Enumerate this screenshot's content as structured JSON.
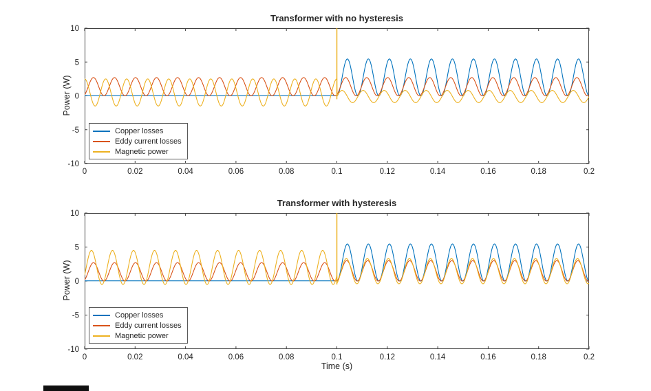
{
  "chart_data": [
    {
      "type": "line",
      "title": "Transformer with no hysteresis",
      "xlabel": "",
      "ylabel": "Power (W)",
      "xlim": [
        0,
        0.2
      ],
      "ylim": [
        -10,
        10
      ],
      "xticks": [
        0,
        0.02,
        0.04,
        0.06,
        0.08,
        0.1,
        0.12,
        0.14,
        0.16,
        0.18,
        0.2
      ],
      "xtick_labels": [
        "0",
        "0.02",
        "0.04",
        "0.06",
        "0.08",
        "0.1",
        "0.12",
        "0.14",
        "0.16",
        "0.18",
        "0.2"
      ],
      "yticks": [
        -10,
        -5,
        0,
        5,
        10
      ],
      "ytick_labels": [
        "-10",
        "-5",
        "0",
        "5",
        "10"
      ],
      "grid": false,
      "legend_position": "southwest",
      "legend": [
        "Copper losses",
        "Eddy current losses",
        "Magnetic power"
      ],
      "colors": [
        "#0072BD",
        "#D95319",
        "#EDB120"
      ],
      "switch_time": 0.1,
      "series": [
        {
          "name": "Copper losses",
          "color": "#0072BD",
          "segments": [
            {
              "t0": 0,
              "t1": 0.1,
              "type": "const",
              "value": 0.03
            },
            {
              "t0": 0.1,
              "t1": 0.2,
              "type": "sin2",
              "amp": 5.45,
              "offset": 0,
              "freq": 60,
              "phase": 0
            }
          ]
        },
        {
          "name": "Eddy current losses",
          "color": "#D95319",
          "segments": [
            {
              "t0": 0,
              "t1": 0.2,
              "type": "sin2",
              "amp": 2.7,
              "offset": 0,
              "freq": 60,
              "phase": 0.25
            }
          ]
        },
        {
          "name": "Magnetic power",
          "color": "#EDB120",
          "segments": [
            {
              "t0": 0,
              "t1": 0.1,
              "type": "sin",
              "amp": 2.0,
              "offset": 0.5,
              "freq": 120,
              "phase": 1.57
            },
            {
              "t0": 0.1,
              "t1": 0.2,
              "type": "sin",
              "amp": 0.9,
              "offset": -0.1,
              "freq": 120,
              "phase": 0
            }
          ]
        }
      ],
      "events": [
        {
          "type": "vline",
          "x": 0.1,
          "y0": -0.5,
          "y1": 10,
          "color": "#EDB120"
        }
      ]
    },
    {
      "type": "line",
      "title": "Transformer with hysteresis",
      "xlabel": "Time (s)",
      "ylabel": "Power (W)",
      "xlim": [
        0,
        0.2
      ],
      "ylim": [
        -10,
        10
      ],
      "xticks": [
        0,
        0.02,
        0.04,
        0.06,
        0.08,
        0.1,
        0.12,
        0.14,
        0.16,
        0.18,
        0.2
      ],
      "xtick_labels": [
        "0",
        "0.02",
        "0.04",
        "0.06",
        "0.08",
        "0.1",
        "0.12",
        "0.14",
        "0.16",
        "0.18",
        "0.2"
      ],
      "yticks": [
        -10,
        -5,
        0,
        5,
        10
      ],
      "ytick_labels": [
        "-10",
        "-5",
        "0",
        "5",
        "10"
      ],
      "grid": false,
      "legend_position": "southwest",
      "legend": [
        "Copper losses",
        "Eddy current losses",
        "Magnetic power"
      ],
      "colors": [
        "#0072BD",
        "#D95319",
        "#EDB120"
      ],
      "switch_time": 0.1,
      "series": [
        {
          "name": "Copper losses",
          "color": "#0072BD",
          "segments": [
            {
              "t0": 0,
              "t1": 0.1,
              "type": "const",
              "value": 0.03
            },
            {
              "t0": 0.1,
              "t1": 0.2,
              "type": "sin2",
              "amp": 5.45,
              "offset": 0,
              "freq": 60,
              "phase": 0
            }
          ]
        },
        {
          "name": "Eddy current losses",
          "color": "#D95319",
          "segments": [
            {
              "t0": 0,
              "t1": 0.1,
              "type": "sin2",
              "amp": 2.7,
              "offset": 0,
              "freq": 60,
              "phase": 0.25
            },
            {
              "t0": 0.1,
              "t1": 0.2,
              "type": "sin2",
              "amp": 3.0,
              "offset": 0,
              "freq": 60,
              "phase": 0.1
            }
          ]
        },
        {
          "name": "Magnetic power",
          "color": "#EDB120",
          "segments": [
            {
              "t0": 0,
              "t1": 0.1,
              "type": "sin2",
              "amp": 5.0,
              "offset": -0.5,
              "freq": 60,
              "phase": 0.55
            },
            {
              "t0": 0.1,
              "t1": 0.2,
              "type": "sin2",
              "amp": 3.7,
              "offset": -0.4,
              "freq": 60,
              "phase": 0.15
            }
          ]
        }
      ],
      "events": [
        {
          "type": "vline",
          "x": 0.1,
          "y0": -0.5,
          "y1": 10,
          "color": "#EDB120"
        }
      ]
    }
  ]
}
